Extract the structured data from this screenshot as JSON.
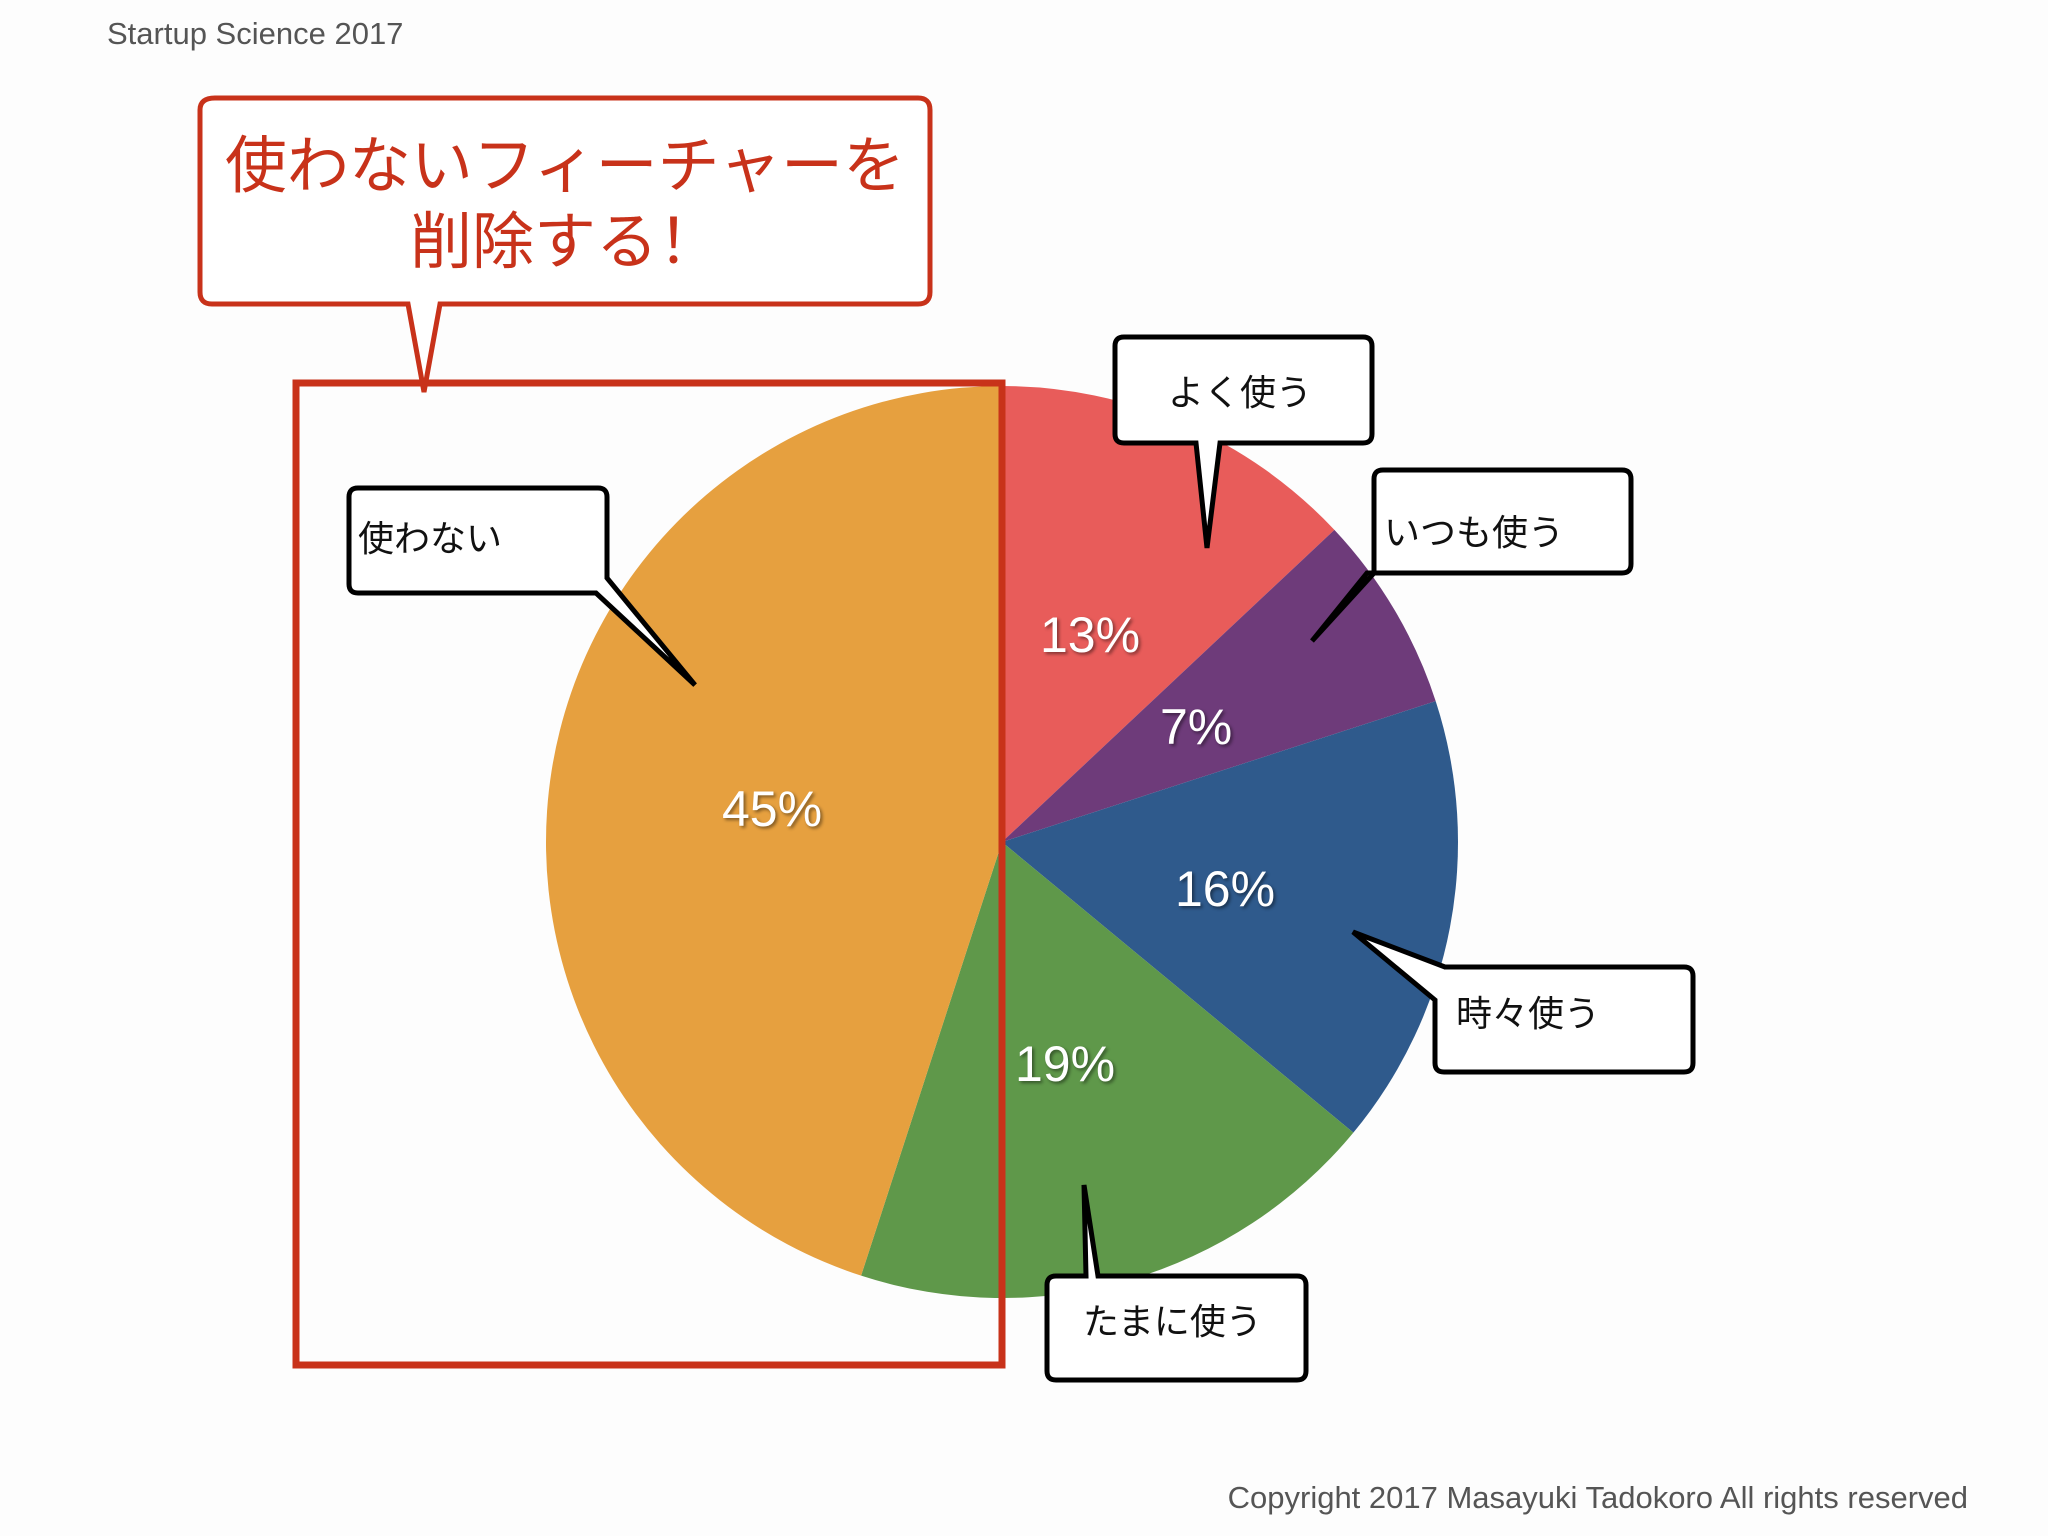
{
  "header": {
    "title": "Startup Science 2017"
  },
  "footer": {
    "copyright": "Copyright 2017 Masayuki Tadokoro All rights reserved"
  },
  "title_callout": {
    "line1": "使わないフィーチャーを",
    "line2": "削除する！",
    "color": "#c8321a"
  },
  "highlight_box": {
    "color": "#c8321a",
    "meaning": "使わない features region"
  },
  "chart_data": {
    "type": "pie",
    "title": "",
    "start_angle": "12 o'clock, clockwise",
    "categories": [
      "よく使う",
      "いつも使う",
      "時々使う",
      "たまに使う",
      "使わない"
    ],
    "values": [
      13,
      7,
      16,
      19,
      45
    ],
    "labels": [
      "13%",
      "7%",
      "16%",
      "19%",
      "45%"
    ],
    "colors": [
      "#e85c5a",
      "#6e3b7a",
      "#2f5a8c",
      "#5f984a",
      "#e6a03f"
    ],
    "legend": "callouts",
    "grid": false
  },
  "callouts": {
    "yoku": "よく使う",
    "itsumo": "いつも使う",
    "tokidoki": "時々使う",
    "tamani": "たまに使う",
    "tsukawanai": "使わない"
  }
}
